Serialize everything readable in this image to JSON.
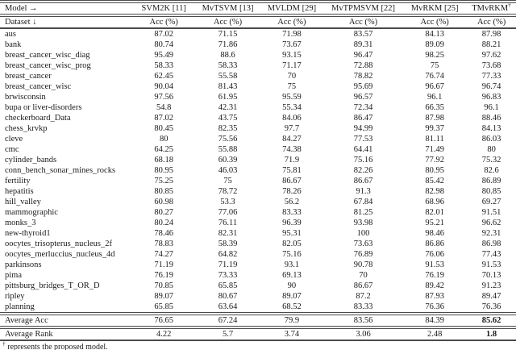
{
  "page": {
    "background_color": "#ffffff",
    "text_color": "#1a1a1a",
    "rule_color": "#4a4a4a"
  },
  "table": {
    "header": {
      "corner_top": "Model →",
      "corner_bottom": "Dataset ↓",
      "models": [
        "SVM2K [11]",
        "MvTSVM [13]",
        "MVLDM [29]",
        "MvTPMSVM [22]",
        "MvRKM [25]",
        "TMvRKM"
      ],
      "dagger": "†",
      "metric_label": "Acc (%)"
    },
    "rows": [
      {
        "dataset": "aus",
        "values": [
          "87.02",
          "71.15",
          "71.98",
          "83.57",
          "84.13",
          "87.98"
        ]
      },
      {
        "dataset": "bank",
        "values": [
          "80.74",
          "71.86",
          "73.67",
          "89.31",
          "89.09",
          "88.21"
        ]
      },
      {
        "dataset": "breast_cancer_wisc_diag",
        "values": [
          "95.49",
          "88.6",
          "93.15",
          "96.47",
          "98.25",
          "97.62"
        ]
      },
      {
        "dataset": "breast_cancer_wisc_prog",
        "values": [
          "58.33",
          "58.33",
          "71.17",
          "72.88",
          "75",
          "73.68"
        ]
      },
      {
        "dataset": "breast_cancer",
        "values": [
          "62.45",
          "55.58",
          "70",
          "78.82",
          "76.74",
          "77.33"
        ]
      },
      {
        "dataset": "breast_cancer_wisc",
        "values": [
          "90.04",
          "81.43",
          "75",
          "95.69",
          "96.67",
          "96.74"
        ]
      },
      {
        "dataset": "brwisconsin",
        "values": [
          "97.56",
          "61.95",
          "95.59",
          "96.57",
          "96.1",
          "96.83"
        ]
      },
      {
        "dataset": "bupa or liver-disorders",
        "values": [
          "54.8",
          "42.31",
          "55.34",
          "72.34",
          "66.35",
          "96.1"
        ]
      },
      {
        "dataset": "checkerboard_Data",
        "values": [
          "87.02",
          "43.75",
          "84.06",
          "86.47",
          "87.98",
          "88.46"
        ]
      },
      {
        "dataset": "chess_krvkp",
        "values": [
          "80.45",
          "82.35",
          "97.7",
          "94.99",
          "99.37",
          "84.13"
        ]
      },
      {
        "dataset": "cleve",
        "values": [
          "80",
          "75.56",
          "84.27",
          "77.53",
          "81.11",
          "86.03"
        ]
      },
      {
        "dataset": "cmc",
        "values": [
          "64.25",
          "55.88",
          "74.38",
          "64.41",
          "71.49",
          "80"
        ]
      },
      {
        "dataset": "cylinder_bands",
        "values": [
          "68.18",
          "60.39",
          "71.9",
          "75.16",
          "77.92",
          "75.32"
        ]
      },
      {
        "dataset": "conn_bench_sonar_mines_rocks",
        "values": [
          "80.95",
          "46.03",
          "75.81",
          "82.26",
          "80.95",
          "82.6"
        ]
      },
      {
        "dataset": "fertility",
        "values": [
          "75.25",
          "75",
          "86.67",
          "86.67",
          "85.42",
          "86.89"
        ]
      },
      {
        "dataset": "hepatitis",
        "values": [
          "80.85",
          "78.72",
          "78.26",
          "91.3",
          "82.98",
          "80.85"
        ]
      },
      {
        "dataset": "hill_valley",
        "values": [
          "60.98",
          "53.3",
          "56.2",
          "67.84",
          "68.96",
          "69.27"
        ]
      },
      {
        "dataset": "mammographic",
        "values": [
          "80.27",
          "77.06",
          "83.33",
          "81.25",
          "82.01",
          "91.51"
        ]
      },
      {
        "dataset": "monks_3",
        "values": [
          "80.24",
          "76.11",
          "96.39",
          "93.98",
          "95.21",
          "96.62"
        ]
      },
      {
        "dataset": "new-thyroid1",
        "values": [
          "78.46",
          "82.31",
          "95.31",
          "100",
          "98.46",
          "92.31"
        ]
      },
      {
        "dataset": "oocytes_trisopterus_nucleus_2f",
        "values": [
          "78.83",
          "58.39",
          "82.05",
          "73.63",
          "86.86",
          "86.98"
        ]
      },
      {
        "dataset": "oocytes_merluccius_nucleus_4d",
        "values": [
          "74.27",
          "64.82",
          "75.16",
          "76.89",
          "76.06",
          "77.43"
        ]
      },
      {
        "dataset": "parkinsons",
        "values": [
          "71.19",
          "71.19",
          "93.1",
          "90.78",
          "91.53",
          "91.53"
        ]
      },
      {
        "dataset": "pima",
        "values": [
          "76.19",
          "73.33",
          "69.13",
          "70",
          "76.19",
          "70.13"
        ]
      },
      {
        "dataset": "pittsburg_bridges_T_OR_D",
        "values": [
          "70.85",
          "65.85",
          "90",
          "86.67",
          "89.42",
          "91.23"
        ]
      },
      {
        "dataset": "ripley",
        "values": [
          "89.07",
          "80.67",
          "89.07",
          "87.2",
          "87.93",
          "89.47"
        ]
      },
      {
        "dataset": "planning",
        "values": [
          "65.85",
          "63.64",
          "68.52",
          "83.33",
          "76.36",
          "76.36"
        ]
      }
    ],
    "summary": [
      {
        "label": "Average Acc",
        "values": [
          "76.65",
          "67.24",
          "79.9",
          "83.56",
          "84.39",
          "85.62"
        ],
        "bold_last": true
      },
      {
        "label": "Average Rank",
        "values": [
          "4.22",
          "5.7",
          "3.74",
          "3.06",
          "2.48",
          "1.8"
        ],
        "bold_last": true
      }
    ],
    "footnote_symbol": "†",
    "footnote_text": "represents the proposed model."
  }
}
